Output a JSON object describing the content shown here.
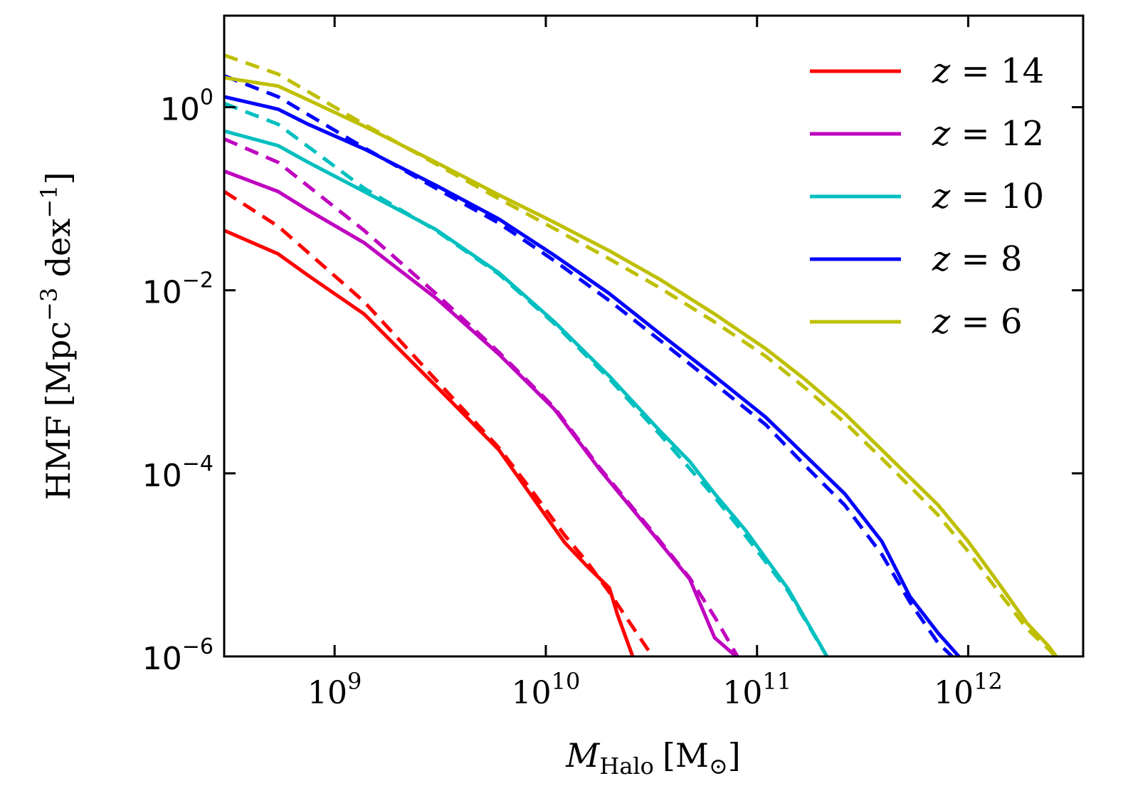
{
  "chart_data": {
    "type": "line",
    "xscale": "log",
    "yscale": "log",
    "xlim": [
      300000000,
      3500000000000
    ],
    "ylim": [
      1e-06,
      10
    ],
    "xlabel": {
      "main": "M",
      "sub": "Halo",
      "unit": "[M",
      "unit_sub": "⊙",
      "unit_close": "]"
    },
    "ylabel": {
      "main": "HMF",
      "unit_open": "[Mpc",
      "exp1": "−3",
      "mid": " dex",
      "exp2": "−1",
      "unit_close": "]"
    },
    "xticks": [
      {
        "value": 1000000000,
        "base": "10",
        "exp": "9"
      },
      {
        "value": 10000000000,
        "base": "10",
        "exp": "10"
      },
      {
        "value": 100000000000,
        "base": "10",
        "exp": "11"
      },
      {
        "value": 1000000000000,
        "base": "10",
        "exp": "12"
      }
    ],
    "yticks": [
      {
        "value": 1,
        "base": "10",
        "exp": "0"
      },
      {
        "value": 0.01,
        "base": "10",
        "exp": "−2"
      },
      {
        "value": 0.0001,
        "base": "10",
        "exp": "−4"
      },
      {
        "value": 1e-06,
        "base": "10",
        "exp": "−6"
      }
    ],
    "legend": {
      "position": "top-right",
      "var": "z",
      "eq": " = "
    },
    "series": [
      {
        "name": "z = 14",
        "z": "14",
        "color": "#ff0000",
        "solid": {
          "x": [
            300000000,
            540000000,
            750000000,
            1380000000,
            3020000000,
            6000000000,
            8900000000,
            12300000000,
            15800000000,
            20000000000,
            21800000000,
            26000000000
          ],
          "y": [
            0.045,
            0.025,
            0.0145,
            0.0055,
            0.0009,
            0.00018,
            5e-05,
            1.75e-05,
            9.5e-06,
            5.6e-06,
            2.9e-06,
            9.5e-07
          ]
        },
        "dashed": {
          "x": [
            300000000,
            540000000,
            1380000000,
            3020000000,
            6000000000,
            8900000000,
            12300000000,
            15800000000,
            20000000000,
            33000000000
          ],
          "y": [
            0.12,
            0.05,
            0.0075,
            0.00105,
            0.00019,
            5.8e-05,
            2.1e-05,
            1.05e-05,
            5e-06,
            9e-07
          ]
        }
      },
      {
        "name": "z = 12",
        "z": "12",
        "color": "#bf00bf",
        "solid": {
          "x": [
            300000000,
            540000000,
            750000000,
            1380000000,
            3020000000,
            6000000000,
            11000000000,
            18000000000,
            32000000000,
            48000000000,
            63000000000,
            89000000000
          ],
          "y": [
            0.2,
            0.12,
            0.075,
            0.033,
            0.0082,
            0.002,
            0.0005,
            0.00011,
            2.2e-05,
            7e-06,
            1.6e-06,
            8e-07
          ]
        },
        "dashed": {
          "x": [
            300000000,
            540000000,
            1380000000,
            3020000000,
            6000000000,
            11000000000,
            18000000000,
            32000000000,
            48000000000,
            63000000000,
            83000000000
          ],
          "y": [
            0.45,
            0.25,
            0.045,
            0.0092,
            0.0021,
            0.00052,
            0.000115,
            2.3e-05,
            7.2e-06,
            2.7e-06,
            9e-07
          ]
        }
      },
      {
        "name": "z = 10",
        "z": "10",
        "color": "#00bfbf",
        "solid": {
          "x": [
            300000000,
            540000000,
            750000000,
            1380000000,
            3020000000,
            6000000000,
            11000000000,
            20000000000,
            35000000000,
            48000000000,
            63000000000,
            88000000000,
            140000000000,
            220000000000
          ],
          "y": [
            0.55,
            0.38,
            0.25,
            0.12,
            0.046,
            0.0155,
            0.0045,
            0.00115,
            0.000285,
            0.000135,
            6e-05,
            2.4e-05,
            5.5e-06,
            9e-07
          ]
        },
        "dashed": {
          "x": [
            300000000,
            540000000,
            1380000000,
            3020000000,
            6000000000,
            11000000000,
            20000000000,
            35000000000,
            63000000000,
            88000000000,
            140000000000,
            220000000000
          ],
          "y": [
            1.1,
            0.65,
            0.13,
            0.045,
            0.015,
            0.0043,
            0.00108,
            0.00026,
            5.5e-05,
            2.1e-05,
            5.2e-06,
            9e-07
          ]
        }
      },
      {
        "name": "z = 8",
        "z": "8",
        "color": "#0000ff",
        "solid": {
          "x": [
            300000000,
            540000000,
            750000000,
            1380000000,
            3020000000,
            6000000000,
            11000000000,
            20000000000,
            35000000000,
            63000000000,
            110000000000,
            170000000000,
            260000000000,
            390000000000,
            530000000000,
            720000000000,
            940000000000
          ],
          "y": [
            1.3,
            0.95,
            0.65,
            0.35,
            0.14,
            0.06,
            0.024,
            0.0092,
            0.0033,
            0.00115,
            0.00041,
            0.000155,
            6e-05,
            1.8e-05,
            4.5e-06,
            1.8e-06,
            9e-07
          ]
        },
        "dashed": {
          "x": [
            300000000,
            540000000,
            1380000000,
            3020000000,
            6000000000,
            11000000000,
            20000000000,
            35000000000,
            63000000000,
            110000000000,
            170000000000,
            260000000000,
            390000000000,
            530000000000,
            720000000000,
            880000000000
          ],
          "y": [
            2.2,
            1.3,
            0.36,
            0.13,
            0.054,
            0.021,
            0.0077,
            0.0028,
            0.00095,
            0.00034,
            0.00012,
            4.5e-05,
            1.3e-05,
            3.9e-06,
            1.4e-06,
            9e-07
          ]
        }
      },
      {
        "name": "z = 6",
        "z": "6",
        "color": "#bfbf00",
        "solid": {
          "x": [
            300000000,
            540000000,
            750000000,
            1380000000,
            3020000000,
            6000000000,
            11000000000,
            20000000000,
            35000000000,
            63000000000,
            110000000000,
            170000000000,
            260000000000,
            390000000000,
            530000000000,
            720000000000,
            1000000000000,
            1400000000000,
            1900000000000,
            2400000000000,
            2700000000000
          ],
          "y": [
            2.1,
            1.7,
            1.2,
            0.62,
            0.25,
            0.11,
            0.055,
            0.027,
            0.013,
            0.0055,
            0.0023,
            0.00105,
            0.00045,
            0.00018,
            9e-05,
            4.5e-05,
            1.8e-05,
            6.2e-06,
            2.3e-06,
            1.3e-06,
            9e-07
          ]
        },
        "dashed": {
          "x": [
            300000000,
            540000000,
            1380000000,
            3020000000,
            6000000000,
            11000000000,
            20000000000,
            35000000000,
            63000000000,
            110000000000,
            170000000000,
            260000000000,
            390000000000,
            530000000000,
            720000000000,
            1000000000000,
            1400000000000,
            1900000000000,
            2400000000000,
            2700000000000
          ],
          "y": [
            3.7,
            2.3,
            0.65,
            0.24,
            0.1,
            0.047,
            0.022,
            0.0105,
            0.0045,
            0.0019,
            0.00085,
            0.00036,
            0.000145,
            7.2e-05,
            3.5e-05,
            1.4e-05,
            5e-06,
            2e-06,
            1.2e-06,
            9e-07
          ]
        }
      }
    ]
  }
}
